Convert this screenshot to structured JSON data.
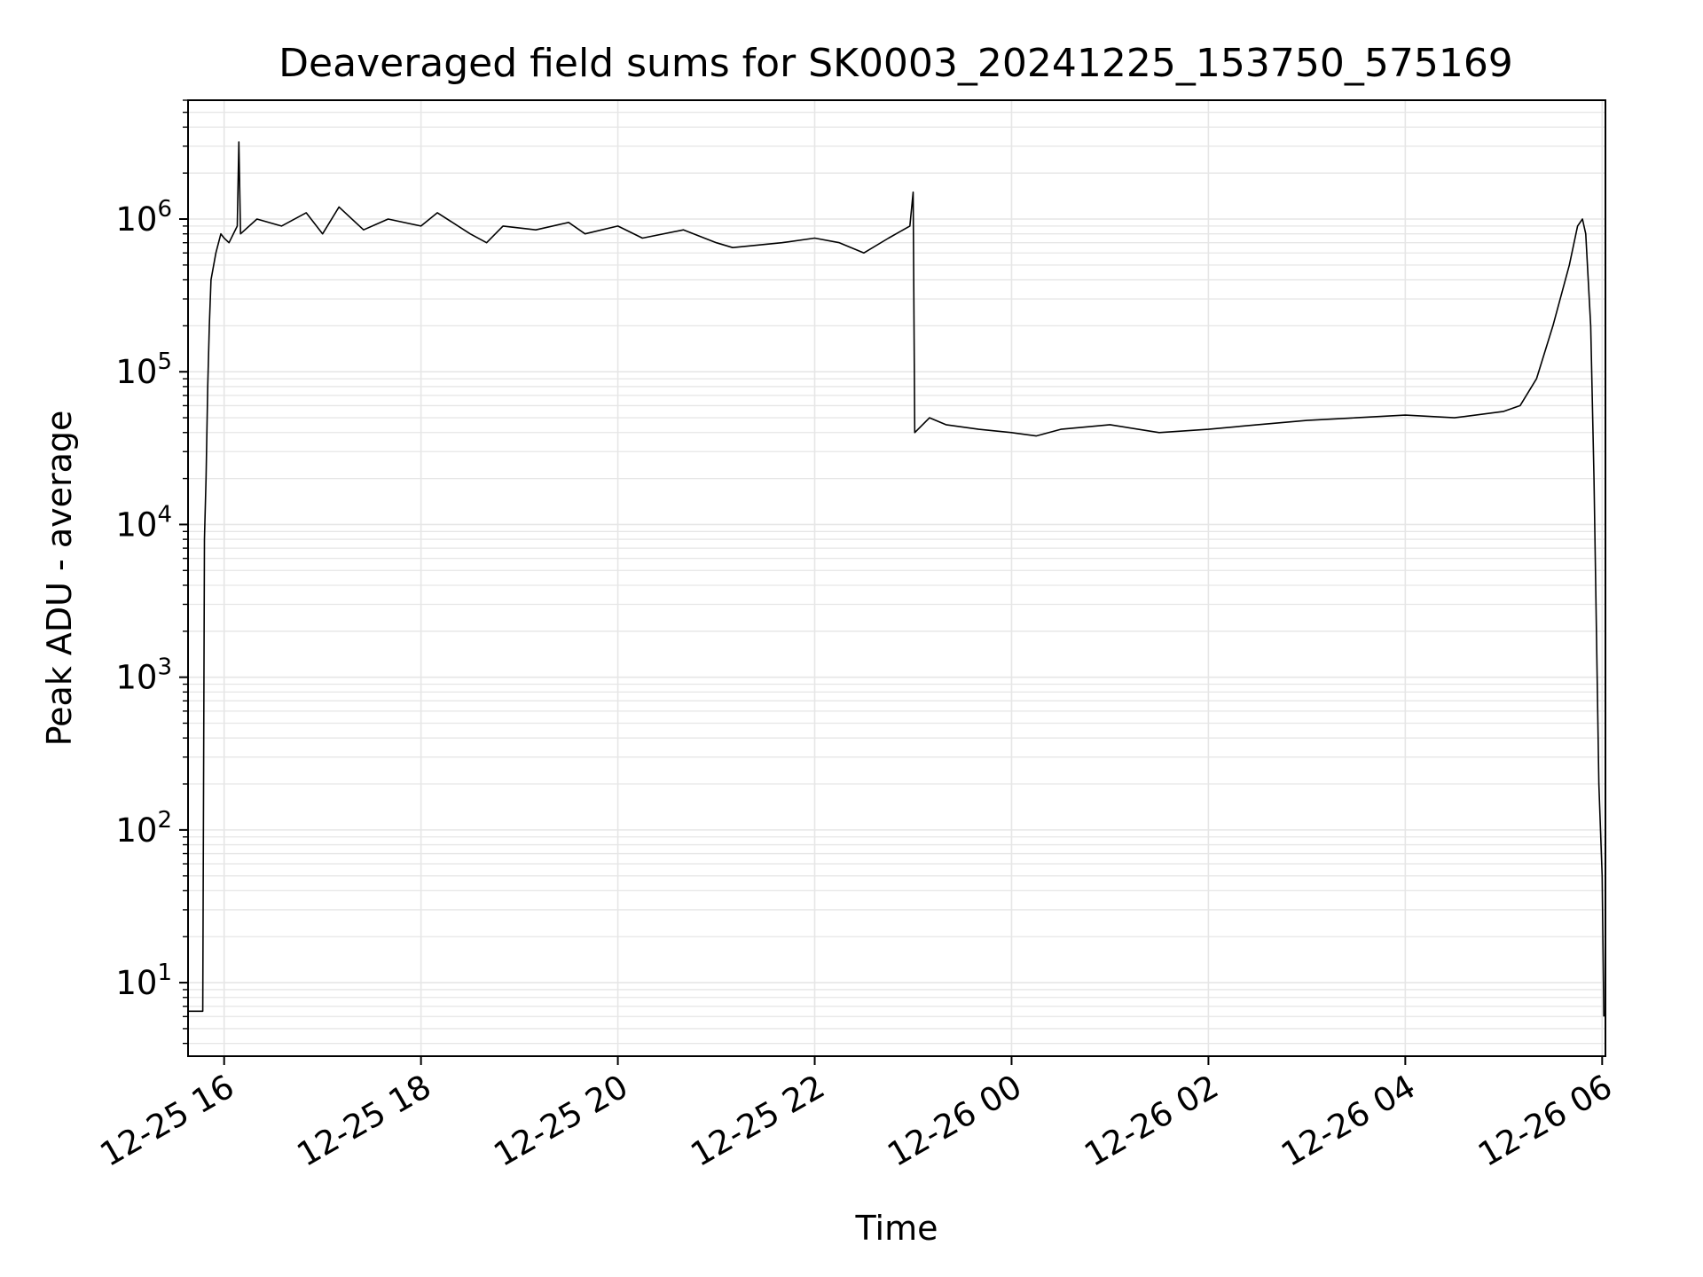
{
  "chart_data": {
    "type": "line",
    "title": "Deaveraged field sums for SK0003_20241225_153750_575169",
    "xlabel": "Time",
    "ylabel": "Peak ADU - average",
    "yscale": "log",
    "grid": true,
    "line_color": "#000000",
    "grid_color": "#e6e6e6",
    "xlim": [
      "2024-12-25 15:38",
      "2024-12-26 06:02"
    ],
    "ylim": [
      3.3,
      6000000
    ],
    "xticks": [
      {
        "value": "2024-12-25 16:00",
        "label": "12-25 16"
      },
      {
        "value": "2024-12-25 18:00",
        "label": "12-25 18"
      },
      {
        "value": "2024-12-25 20:00",
        "label": "12-25 20"
      },
      {
        "value": "2024-12-25 22:00",
        "label": "12-25 22"
      },
      {
        "value": "2024-12-26 00:00",
        "label": "12-26 00"
      },
      {
        "value": "2024-12-26 02:00",
        "label": "12-26 02"
      },
      {
        "value": "2024-12-26 04:00",
        "label": "12-26 04"
      },
      {
        "value": "2024-12-26 06:00",
        "label": "12-26 06"
      }
    ],
    "yticks": [
      {
        "value": 10,
        "base": "10",
        "exp": "1"
      },
      {
        "value": 100,
        "base": "10",
        "exp": "2"
      },
      {
        "value": 1000,
        "base": "10",
        "exp": "3"
      },
      {
        "value": 10000,
        "base": "10",
        "exp": "4"
      },
      {
        "value": 100000,
        "base": "10",
        "exp": "5"
      },
      {
        "value": 1000000,
        "base": "10",
        "exp": "6"
      }
    ],
    "series": [
      {
        "x": [
          "2024-12-25 15:38",
          "2024-12-25 15:47",
          "2024-12-25 15:48",
          "2024-12-25 15:49",
          "2024-12-25 15:50",
          "2024-12-25 15:51",
          "2024-12-25 15:52",
          "2024-12-25 15:55",
          "2024-12-25 15:58",
          "2024-12-25 16:00",
          "2024-12-25 16:03",
          "2024-12-25 16:08",
          "2024-12-25 16:09",
          "2024-12-25 16:10",
          "2024-12-25 16:20",
          "2024-12-25 16:35",
          "2024-12-25 16:50",
          "2024-12-25 17:00",
          "2024-12-25 17:10",
          "2024-12-25 17:25",
          "2024-12-25 17:40",
          "2024-12-25 18:00",
          "2024-12-25 18:10",
          "2024-12-25 18:30",
          "2024-12-25 18:40",
          "2024-12-25 18:50",
          "2024-12-25 19:10",
          "2024-12-25 19:30",
          "2024-12-25 19:40",
          "2024-12-25 20:00",
          "2024-12-25 20:15",
          "2024-12-25 20:40",
          "2024-12-25 21:00",
          "2024-12-25 21:10",
          "2024-12-25 21:40",
          "2024-12-25 22:00",
          "2024-12-25 22:15",
          "2024-12-25 22:30",
          "2024-12-25 22:45",
          "2024-12-25 22:58",
          "2024-12-25 23:00",
          "2024-12-25 23:01",
          "2024-12-25 23:10",
          "2024-12-25 23:20",
          "2024-12-25 23:40",
          "2024-12-26 00:00",
          "2024-12-26 00:15",
          "2024-12-26 00:30",
          "2024-12-26 01:00",
          "2024-12-26 01:30",
          "2024-12-26 02:00",
          "2024-12-26 02:30",
          "2024-12-26 03:00",
          "2024-12-26 03:30",
          "2024-12-26 04:00",
          "2024-12-26 04:30",
          "2024-12-26 05:00",
          "2024-12-26 05:10",
          "2024-12-26 05:20",
          "2024-12-26 05:30",
          "2024-12-26 05:40",
          "2024-12-26 05:45",
          "2024-12-26 05:48",
          "2024-12-26 05:50",
          "2024-12-26 05:53",
          "2024-12-26 05:55",
          "2024-12-26 05:58",
          "2024-12-26 06:00",
          "2024-12-26 06:01"
        ],
        "y": [
          6.5,
          6.5,
          8000,
          20000,
          80000,
          200000,
          400000,
          600000,
          800000,
          750000,
          700000,
          900000,
          3200000,
          800000,
          1000000,
          900000,
          1100000,
          800000,
          1200000,
          850000,
          1000000,
          900000,
          1100000,
          800000,
          700000,
          900000,
          850000,
          950000,
          800000,
          900000,
          750000,
          850000,
          700000,
          650000,
          700000,
          750000,
          700000,
          600000,
          750000,
          900000,
          1500000,
          40000,
          50000,
          45000,
          42000,
          40000,
          38000,
          42000,
          45000,
          40000,
          42000,
          45000,
          48000,
          50000,
          52000,
          50000,
          55000,
          60000,
          90000,
          200000,
          500000,
          900000,
          1000000,
          800000,
          200000,
          20000,
          200,
          50,
          6
        ]
      }
    ]
  }
}
